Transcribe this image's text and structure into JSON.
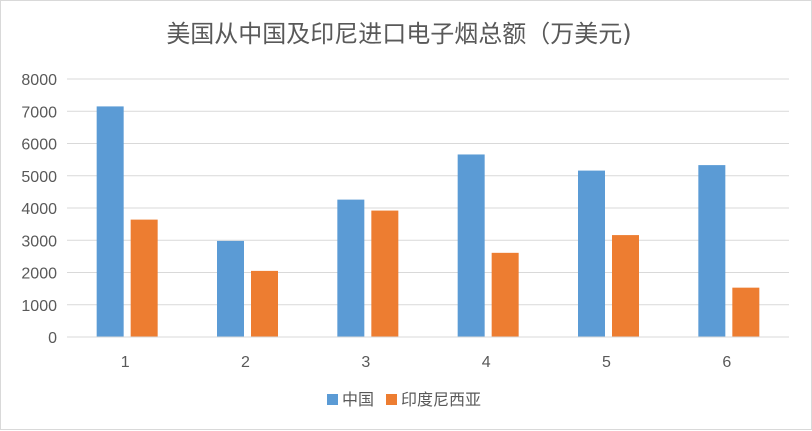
{
  "chart_data": {
    "type": "bar",
    "title": "美国从中国及印尼进口电子烟总额（万美元)",
    "xlabel": "",
    "ylabel": "",
    "categories": [
      "1",
      "2",
      "3",
      "4",
      "5",
      "6"
    ],
    "series": [
      {
        "name": "中国",
        "values": [
          7150,
          2980,
          4260,
          5660,
          5160,
          5330
        ],
        "color": "#5b9bd5"
      },
      {
        "name": "印度尼西亚",
        "values": [
          3640,
          2050,
          3920,
          2610,
          3160,
          1530
        ],
        "color": "#ed7d31"
      }
    ],
    "ylim": [
      0,
      8000
    ],
    "yticks": [
      0,
      1000,
      2000,
      3000,
      4000,
      5000,
      6000,
      7000,
      8000
    ],
    "grid": true,
    "legend": "bottom-center"
  }
}
